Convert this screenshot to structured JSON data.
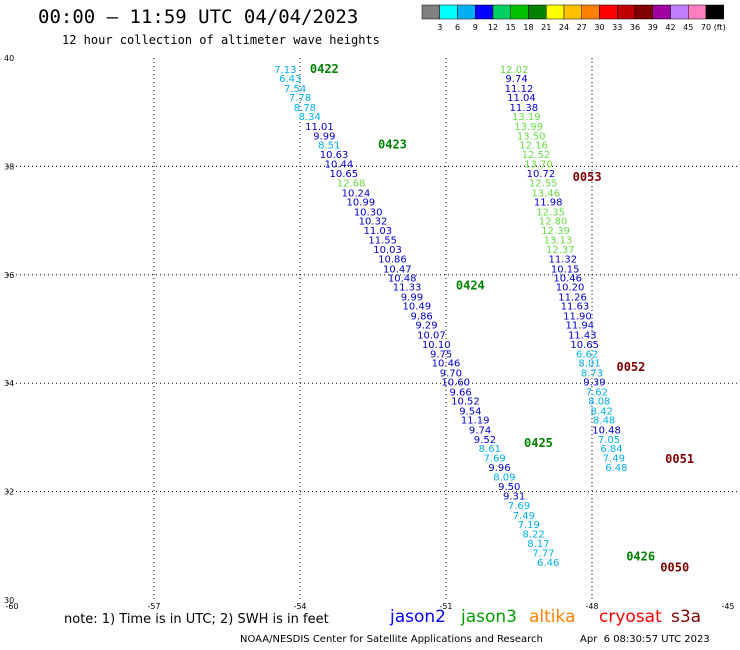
{
  "header": {
    "title": "00:00 – 11:59 UTC 04/04/2023",
    "subtitle": "12 hour collection of altimeter wave heights"
  },
  "colorbar": {
    "labels": [
      "3",
      "6",
      "9",
      "12",
      "15",
      "18",
      "21",
      "24",
      "27",
      "30",
      "33",
      "36",
      "39",
      "42",
      "45",
      "70"
    ],
    "unit": "(ft)",
    "colors": [
      "#808080",
      "#00ffff",
      "#00b0f0",
      "#0000ff",
      "#00d060",
      "#00c000",
      "#008000",
      "#ffff00",
      "#ffc000",
      "#ff8000",
      "#ff0000",
      "#c00000",
      "#800000",
      "#a000a0",
      "#c080ff",
      "#ff80c0",
      "#000000"
    ]
  },
  "footer": {
    "note": "note: 1) Time is in UTC; 2) SWH is in feet",
    "credit": "NOAA/NESDIS Center for Satellite Applications and Research",
    "timestamp": "Apr  6 08:30:57 UTC 2023",
    "missions": [
      {
        "name": "jason2",
        "color": "#0000ff"
      },
      {
        "name": "jason3",
        "color": "#00a000"
      },
      {
        "name": "altika",
        "color": "#ff8000"
      },
      {
        "name": "cryosat",
        "color": "#ff0000"
      },
      {
        "name": "s3a",
        "color": "#800000"
      }
    ]
  },
  "chart_data": {
    "type": "scatter",
    "title": "00:00 – 11:59 UTC 04/04/2023",
    "subtitle": "12 hour collection of altimeter wave heights",
    "xlim": [
      -60,
      -45
    ],
    "ylim": [
      30,
      40
    ],
    "xticks": [
      "-60",
      "-57",
      "-54",
      "-51",
      "-48",
      "-45"
    ],
    "yticks": [
      "30",
      "32",
      "34",
      "36",
      "38",
      "40"
    ],
    "xtick_values": [
      -60,
      -57,
      -54,
      -51,
      -48,
      -45
    ],
    "ytick_values": [
      30,
      32,
      34,
      36,
      38,
      40
    ],
    "grid": true,
    "unit": "ft",
    "points": [
      {
        "lon": -54.3,
        "lat": 39.8,
        "v": "7.13",
        "c": "#00b0f0"
      },
      {
        "lon": -54.2,
        "lat": 39.63,
        "v": "6.43",
        "c": "#00b0f0"
      },
      {
        "lon": -54.1,
        "lat": 39.45,
        "v": "7.54",
        "c": "#00b0f0"
      },
      {
        "lon": -54.0,
        "lat": 39.28,
        "v": "7.78",
        "c": "#00b0f0"
      },
      {
        "lon": -53.9,
        "lat": 39.1,
        "v": "8.78",
        "c": "#00b0f0"
      },
      {
        "lon": -53.8,
        "lat": 38.93,
        "v": "8.34",
        "c": "#00b0f0"
      },
      {
        "lon": -53.6,
        "lat": 38.75,
        "v": "11.01",
        "c": "#0000cd"
      },
      {
        "lon": -53.5,
        "lat": 38.57,
        "v": "9.99",
        "c": "#0000cd"
      },
      {
        "lon": -53.4,
        "lat": 38.4,
        "v": "8.51",
        "c": "#00b0f0"
      },
      {
        "lon": -53.3,
        "lat": 38.23,
        "v": "10.63",
        "c": "#0000cd"
      },
      {
        "lon": -53.2,
        "lat": 38.05,
        "v": "10.44",
        "c": "#0000cd"
      },
      {
        "lon": -53.1,
        "lat": 37.88,
        "v": "10.65",
        "c": "#0000cd"
      },
      {
        "lon": -52.95,
        "lat": 37.7,
        "v": "12.68",
        "c": "#66dd44"
      },
      {
        "lon": -52.85,
        "lat": 37.52,
        "v": "10.24",
        "c": "#0000cd"
      },
      {
        "lon": -52.75,
        "lat": 37.35,
        "v": "10.99",
        "c": "#0000cd"
      },
      {
        "lon": -52.6,
        "lat": 37.17,
        "v": "10.30",
        "c": "#0000cd"
      },
      {
        "lon": -52.5,
        "lat": 37.0,
        "v": "10.32",
        "c": "#0000cd"
      },
      {
        "lon": -52.4,
        "lat": 36.83,
        "v": "11.03",
        "c": "#0000cd"
      },
      {
        "lon": -52.3,
        "lat": 36.65,
        "v": "11.55",
        "c": "#0000cd"
      },
      {
        "lon": -52.2,
        "lat": 36.48,
        "v": "10.03",
        "c": "#0000cd"
      },
      {
        "lon": -52.1,
        "lat": 36.3,
        "v": "10.86",
        "c": "#0000cd"
      },
      {
        "lon": -52.0,
        "lat": 36.12,
        "v": "10.47",
        "c": "#0000cd"
      },
      {
        "lon": -51.9,
        "lat": 35.95,
        "v": "10.48",
        "c": "#0000cd"
      },
      {
        "lon": -51.8,
        "lat": 35.78,
        "v": "11.33",
        "c": "#0000cd"
      },
      {
        "lon": -51.7,
        "lat": 35.6,
        "v": "9.99",
        "c": "#0000cd"
      },
      {
        "lon": -51.6,
        "lat": 35.43,
        "v": "10.49",
        "c": "#0000cd"
      },
      {
        "lon": -51.5,
        "lat": 35.25,
        "v": "9.86",
        "c": "#0000cd"
      },
      {
        "lon": -51.4,
        "lat": 35.08,
        "v": "9.29",
        "c": "#0000cd"
      },
      {
        "lon": -51.3,
        "lat": 34.9,
        "v": "10.07",
        "c": "#0000cd"
      },
      {
        "lon": -51.2,
        "lat": 34.72,
        "v": "10.10",
        "c": "#0000cd"
      },
      {
        "lon": -51.1,
        "lat": 34.55,
        "v": "9.75",
        "c": "#0000cd"
      },
      {
        "lon": -51.0,
        "lat": 34.38,
        "v": "10.46",
        "c": "#0000cd"
      },
      {
        "lon": -50.9,
        "lat": 34.2,
        "v": "9.70",
        "c": "#0000cd"
      },
      {
        "lon": -50.8,
        "lat": 34.03,
        "v": "10.60",
        "c": "#0000cd"
      },
      {
        "lon": -50.7,
        "lat": 33.85,
        "v": "9.66",
        "c": "#0000cd"
      },
      {
        "lon": -50.6,
        "lat": 33.68,
        "v": "10.52",
        "c": "#0000cd"
      },
      {
        "lon": -50.5,
        "lat": 33.5,
        "v": "9.54",
        "c": "#0000cd"
      },
      {
        "lon": -50.4,
        "lat": 33.33,
        "v": "11.19",
        "c": "#0000cd"
      },
      {
        "lon": -50.3,
        "lat": 33.15,
        "v": "9.74",
        "c": "#0000cd"
      },
      {
        "lon": -50.2,
        "lat": 32.97,
        "v": "9.52",
        "c": "#0000cd"
      },
      {
        "lon": -50.1,
        "lat": 32.8,
        "v": "8.61",
        "c": "#00b0f0"
      },
      {
        "lon": -50.0,
        "lat": 32.63,
        "v": "7.69",
        "c": "#00b0f0"
      },
      {
        "lon": -49.9,
        "lat": 32.45,
        "v": "9.96",
        "c": "#0000cd"
      },
      {
        "lon": -49.8,
        "lat": 32.28,
        "v": "8.09",
        "c": "#00b0f0"
      },
      {
        "lon": -49.7,
        "lat": 32.1,
        "v": "9.50",
        "c": "#0000cd"
      },
      {
        "lon": -49.6,
        "lat": 31.93,
        "v": "9.31",
        "c": "#0000cd"
      },
      {
        "lon": -49.5,
        "lat": 31.75,
        "v": "7.69",
        "c": "#00b0f0"
      },
      {
        "lon": -49.4,
        "lat": 31.57,
        "v": "7.49",
        "c": "#00b0f0"
      },
      {
        "lon": -49.3,
        "lat": 31.4,
        "v": "7.19",
        "c": "#00b0f0"
      },
      {
        "lon": -49.2,
        "lat": 31.23,
        "v": "8.22",
        "c": "#00b0f0"
      },
      {
        "lon": -49.1,
        "lat": 31.05,
        "v": "8.17",
        "c": "#00b0f0"
      },
      {
        "lon": -49.0,
        "lat": 30.88,
        "v": "7.77",
        "c": "#00b0f0"
      },
      {
        "lon": -48.9,
        "lat": 30.7,
        "v": "6.46",
        "c": "#00b0f0"
      },
      {
        "lon": -49.6,
        "lat": 39.8,
        "v": "12.02",
        "c": "#66dd44"
      },
      {
        "lon": -49.55,
        "lat": 39.63,
        "v": "9.74",
        "c": "#0000cd"
      },
      {
        "lon": -49.5,
        "lat": 39.45,
        "v": "11.12",
        "c": "#0000cd"
      },
      {
        "lon": -49.45,
        "lat": 39.28,
        "v": "11.04",
        "c": "#0000cd"
      },
      {
        "lon": -49.4,
        "lat": 39.1,
        "v": "11.38",
        "c": "#0000cd"
      },
      {
        "lon": -49.35,
        "lat": 38.93,
        "v": "13.19",
        "c": "#66dd44"
      },
      {
        "lon": -49.3,
        "lat": 38.75,
        "v": "13.99",
        "c": "#66dd44"
      },
      {
        "lon": -49.25,
        "lat": 38.57,
        "v": "13.50",
        "c": "#66dd44"
      },
      {
        "lon": -49.2,
        "lat": 38.4,
        "v": "12.16",
        "c": "#66dd44"
      },
      {
        "lon": -49.15,
        "lat": 38.23,
        "v": "12.52",
        "c": "#66dd44"
      },
      {
        "lon": -49.1,
        "lat": 38.05,
        "v": "13.70",
        "c": "#66dd44"
      },
      {
        "lon": -49.05,
        "lat": 37.88,
        "v": "10.72",
        "c": "#0000cd"
      },
      {
        "lon": -49.0,
        "lat": 37.7,
        "v": "12.55",
        "c": "#66dd44"
      },
      {
        "lon": -48.95,
        "lat": 37.52,
        "v": "13.46",
        "c": "#66dd44"
      },
      {
        "lon": -48.9,
        "lat": 37.35,
        "v": "11.98",
        "c": "#0000cd"
      },
      {
        "lon": -48.85,
        "lat": 37.17,
        "v": "12.35",
        "c": "#66dd44"
      },
      {
        "lon": -48.8,
        "lat": 37.0,
        "v": "12.80",
        "c": "#66dd44"
      },
      {
        "lon": -48.75,
        "lat": 36.83,
        "v": "12.39",
        "c": "#66dd44"
      },
      {
        "lon": -48.7,
        "lat": 36.65,
        "v": "13.13",
        "c": "#66dd44"
      },
      {
        "lon": -48.65,
        "lat": 36.48,
        "v": "12.37",
        "c": "#66dd44"
      },
      {
        "lon": -48.6,
        "lat": 36.3,
        "v": "11.32",
        "c": "#0000cd"
      },
      {
        "lon": -48.55,
        "lat": 36.12,
        "v": "10.15",
        "c": "#0000cd"
      },
      {
        "lon": -48.5,
        "lat": 35.95,
        "v": "10.46",
        "c": "#0000cd"
      },
      {
        "lon": -48.45,
        "lat": 35.78,
        "v": "10.20",
        "c": "#0000cd"
      },
      {
        "lon": -48.4,
        "lat": 35.6,
        "v": "11.26",
        "c": "#0000cd"
      },
      {
        "lon": -48.35,
        "lat": 35.43,
        "v": "11.63",
        "c": "#0000cd"
      },
      {
        "lon": -48.3,
        "lat": 35.25,
        "v": "11.90",
        "c": "#0000cd"
      },
      {
        "lon": -48.25,
        "lat": 35.08,
        "v": "11.94",
        "c": "#0000cd"
      },
      {
        "lon": -48.2,
        "lat": 34.9,
        "v": "11.43",
        "c": "#0000cd"
      },
      {
        "lon": -48.15,
        "lat": 34.72,
        "v": "10.65",
        "c": "#0000cd"
      },
      {
        "lon": -48.1,
        "lat": 34.55,
        "v": "6.62",
        "c": "#00b0f0"
      },
      {
        "lon": -48.05,
        "lat": 34.38,
        "v": "8.01",
        "c": "#00b0f0"
      },
      {
        "lon": -48.0,
        "lat": 34.2,
        "v": "8.73",
        "c": "#00b0f0"
      },
      {
        "lon": -47.95,
        "lat": 34.03,
        "v": "9.39",
        "c": "#0000cd"
      },
      {
        "lon": -47.9,
        "lat": 33.85,
        "v": "7.62",
        "c": "#00b0f0"
      },
      {
        "lon": -47.85,
        "lat": 33.68,
        "v": "8.08",
        "c": "#00b0f0"
      },
      {
        "lon": -47.8,
        "lat": 33.5,
        "v": "8.42",
        "c": "#00b0f0"
      },
      {
        "lon": -47.75,
        "lat": 33.33,
        "v": "8.48",
        "c": "#00b0f0"
      },
      {
        "lon": -47.7,
        "lat": 33.15,
        "v": "10.48",
        "c": "#0000cd"
      },
      {
        "lon": -47.65,
        "lat": 32.97,
        "v": "7.05",
        "c": "#00b0f0"
      },
      {
        "lon": -47.6,
        "lat": 32.8,
        "v": "6.84",
        "c": "#00b0f0"
      },
      {
        "lon": -47.55,
        "lat": 32.63,
        "v": "7.49",
        "c": "#00b0f0"
      },
      {
        "lon": -47.5,
        "lat": 32.45,
        "v": "6.48",
        "c": "#00b0f0"
      }
    ],
    "pass_labels": [
      {
        "lon": -53.5,
        "lat": 39.8,
        "text": "0422",
        "c": "#008000"
      },
      {
        "lon": -52.1,
        "lat": 38.4,
        "text": "0423",
        "c": "#008000"
      },
      {
        "lon": -50.5,
        "lat": 35.8,
        "text": "0424",
        "c": "#008000"
      },
      {
        "lon": -49.1,
        "lat": 32.9,
        "text": "0425",
        "c": "#008000"
      },
      {
        "lon": -47.0,
        "lat": 30.8,
        "text": "0426",
        "c": "#008000"
      },
      {
        "lon": -48.1,
        "lat": 37.8,
        "text": "0053",
        "c": "#800000"
      },
      {
        "lon": -47.2,
        "lat": 34.3,
        "text": "0052",
        "c": "#800000"
      },
      {
        "lon": -46.2,
        "lat": 32.6,
        "text": "0051",
        "c": "#800000"
      },
      {
        "lon": -46.3,
        "lat": 30.6,
        "text": "0050",
        "c": "#800000"
      }
    ]
  }
}
